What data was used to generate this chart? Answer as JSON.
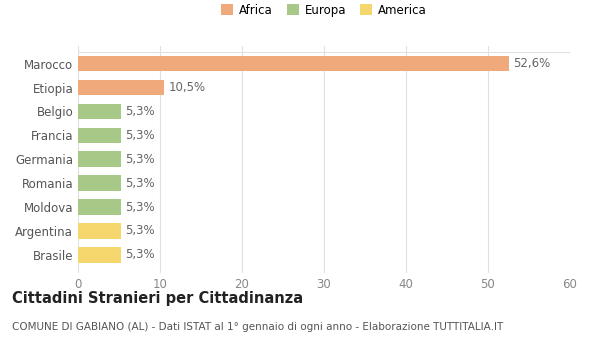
{
  "categories": [
    "Brasile",
    "Argentina",
    "Moldova",
    "Romania",
    "Germania",
    "Francia",
    "Belgio",
    "Etiopia",
    "Marocco"
  ],
  "values": [
    5.3,
    5.3,
    5.3,
    5.3,
    5.3,
    5.3,
    5.3,
    10.5,
    52.6
  ],
  "labels": [
    "5,3%",
    "5,3%",
    "5,3%",
    "5,3%",
    "5,3%",
    "5,3%",
    "5,3%",
    "10,5%",
    "52,6%"
  ],
  "colors": [
    "#F5D76E",
    "#F5D76E",
    "#A8C887",
    "#A8C887",
    "#A8C887",
    "#A8C887",
    "#A8C887",
    "#F0A97A",
    "#F0A97A"
  ],
  "legend_labels": [
    "Africa",
    "Europa",
    "America"
  ],
  "legend_colors": [
    "#F0A97A",
    "#A8C887",
    "#F5D76E"
  ],
  "xlim": [
    0,
    60
  ],
  "xticks": [
    0,
    10,
    20,
    30,
    40,
    50,
    60
  ],
  "title_main": "Cittadini Stranieri per Cittadinanza",
  "title_sub": "COMUNE DI GABIANO (AL) - Dati ISTAT al 1° gennaio di ogni anno - Elaborazione TUTTITALIA.IT",
  "background_color": "#FFFFFF",
  "grid_color": "#E0E0E0",
  "bar_height": 0.65,
  "label_fontsize": 8.5,
  "tick_fontsize": 8.5,
  "title_fontsize": 10.5,
  "subtitle_fontsize": 7.5
}
